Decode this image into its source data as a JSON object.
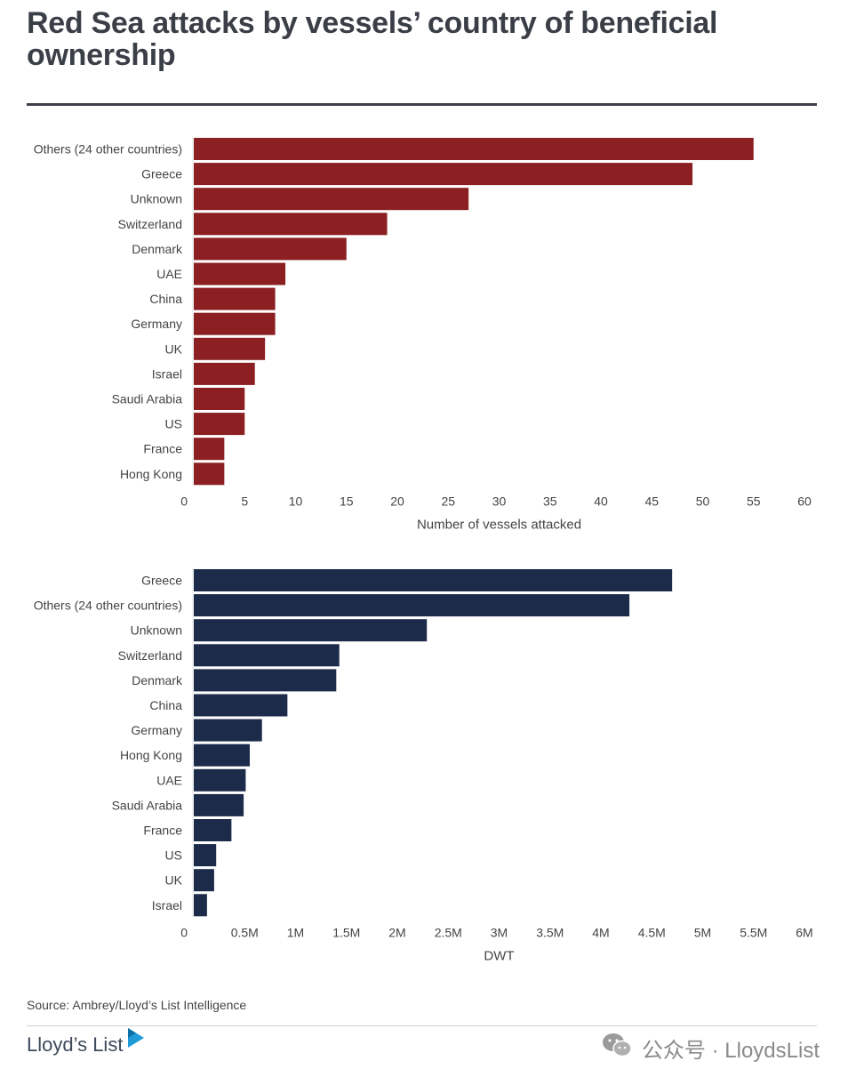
{
  "header": {
    "title": "Red Sea attacks by vessels’ country of beneficial ownership"
  },
  "colors": {
    "chart1_bar": "#8b1f22",
    "chart2_bar": "#1c2b4a",
    "axis_text": "#444444"
  },
  "chart_data": [
    {
      "type": "bar",
      "orientation": "horizontal",
      "categories": [
        "Others (24 other countries)",
        "Greece",
        "Unknown",
        "Switzerland",
        "Denmark",
        "UAE",
        "China",
        "Germany",
        "UK",
        "Israel",
        "Saudi Arabia",
        "US",
        "France",
        "Hong Kong"
      ],
      "values": [
        55,
        49,
        27,
        19,
        15,
        9,
        8,
        8,
        7,
        6,
        5,
        5,
        3,
        3
      ],
      "xlabel": "Number of vessels attacked",
      "xlim": [
        0,
        60
      ],
      "xticks": [
        0,
        5,
        10,
        15,
        20,
        25,
        30,
        35,
        40,
        45,
        50,
        55,
        60
      ],
      "xtick_labels": [
        "0",
        "5",
        "10",
        "15",
        "20",
        "25",
        "30",
        "35",
        "40",
        "45",
        "50",
        "55",
        "60"
      ],
      "grid": false
    },
    {
      "type": "bar",
      "orientation": "horizontal",
      "categories": [
        "Greece",
        "Others (24 other countries)",
        "Unknown",
        "Switzerland",
        "Denmark",
        "China",
        "Germany",
        "Hong Kong",
        "UAE",
        "Saudi Arabia",
        "France",
        "US",
        "UK",
        "Israel"
      ],
      "values": [
        4700000,
        4280000,
        2290000,
        1430000,
        1400000,
        920000,
        670000,
        550000,
        510000,
        490000,
        370000,
        220000,
        200000,
        130000
      ],
      "xlabel": "DWT",
      "xlim": [
        0,
        6000000
      ],
      "xticks": [
        0,
        500000,
        1000000,
        1500000,
        2000000,
        2500000,
        3000000,
        3500000,
        4000000,
        4500000,
        5000000,
        5500000,
        6000000
      ],
      "xtick_labels": [
        "0",
        "0.5M",
        "1M",
        "1.5M",
        "2M",
        "2.5M",
        "3M",
        "3.5M",
        "4M",
        "4.5M",
        "5M",
        "5.5M",
        "6M"
      ],
      "grid": false
    }
  ],
  "footer": {
    "source": "Source: Ambrey/Lloyd’s List Intelligence",
    "logo_text": "Lloyd’s List",
    "watermark": "公众号 · LloydsList"
  }
}
